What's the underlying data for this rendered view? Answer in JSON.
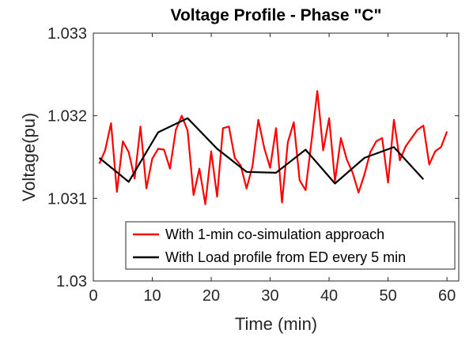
{
  "chart_data": {
    "type": "line",
    "title": "Voltage Profile - Phase \"C\"",
    "xlabel": "Time (min)",
    "ylabel": "Voltage(pu)",
    "xlim": [
      0,
      62
    ],
    "ylim": [
      1.03,
      1.033
    ],
    "xticks": [
      0,
      10,
      20,
      30,
      40,
      50,
      60
    ],
    "xtick_labels": [
      "0",
      "10",
      "20",
      "30",
      "40",
      "50",
      "60"
    ],
    "yticks": [
      1.03,
      1.031,
      1.032,
      1.033
    ],
    "ytick_labels": [
      "1.03",
      "1.031",
      "1.032",
      "1.033"
    ],
    "grid": false,
    "legend_position": "bottom-right",
    "series": [
      {
        "name": "With 1-min co-simulation approach",
        "color": "#ff0000",
        "x": [
          1,
          2,
          3,
          4,
          5,
          6,
          7,
          8,
          9,
          10,
          11,
          12,
          13,
          14,
          15,
          16,
          17,
          18,
          19,
          20,
          21,
          22,
          23,
          24,
          25,
          26,
          27,
          28,
          29,
          30,
          31,
          32,
          33,
          34,
          35,
          36,
          37,
          38,
          39,
          40,
          41,
          42,
          43,
          44,
          45,
          46,
          47,
          48,
          49,
          50,
          51,
          52,
          53,
          54,
          55,
          56,
          57,
          58,
          59,
          60
        ],
        "values": [
          1.03142,
          1.03158,
          1.03191,
          1.03108,
          1.03169,
          1.03156,
          1.03124,
          1.03187,
          1.03112,
          1.03148,
          1.0316,
          1.03159,
          1.03136,
          1.03183,
          1.032,
          1.03182,
          1.03104,
          1.03136,
          1.03093,
          1.03157,
          1.03102,
          1.03185,
          1.03187,
          1.03149,
          1.0314,
          1.03112,
          1.03139,
          1.03195,
          1.03161,
          1.03137,
          1.03185,
          1.03095,
          1.03168,
          1.03192,
          1.03122,
          1.0311,
          1.03168,
          1.0323,
          1.03158,
          1.03197,
          1.03121,
          1.03173,
          1.03147,
          1.03131,
          1.03107,
          1.03129,
          1.03156,
          1.03169,
          1.03173,
          1.03119,
          1.03195,
          1.03146,
          1.03163,
          1.03173,
          1.03183,
          1.03188,
          1.03141,
          1.03157,
          1.03162,
          1.03181
        ]
      },
      {
        "name": "With Load profile from ED every 5 min",
        "color": "#000000",
        "x": [
          1,
          6,
          11,
          16,
          21,
          26,
          31,
          36,
          41,
          46,
          51,
          56
        ],
        "values": [
          1.03149,
          1.0312,
          1.0318,
          1.03197,
          1.0316,
          1.03132,
          1.03131,
          1.03159,
          1.03118,
          1.03149,
          1.03162,
          1.03123
        ]
      }
    ]
  }
}
